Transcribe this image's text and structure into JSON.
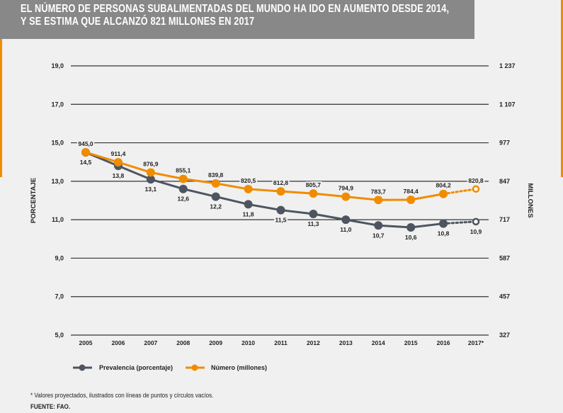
{
  "title_line1": "EL NÚMERO DE PERSONAS SUBALIMENTADAS DEL MUNDO HA IDO EN AUMENTO DESDE 2014,",
  "title_line2": "Y SE ESTIMA QUE ALCANZÓ 821 MILLONES EN 2017",
  "colors": {
    "prevalence": "#4d5560",
    "number": "#f08c00",
    "title_bg": "#888888",
    "accent": "#f08c00"
  },
  "chart_data": {
    "type": "line",
    "categories": [
      "2005",
      "2006",
      "2007",
      "2008",
      "2009",
      "2010",
      "2011",
      "2012",
      "2013",
      "2014",
      "2015",
      "2016",
      "2017*"
    ],
    "ylabel": "PORCENTAJE",
    "y2label": "MILLONES",
    "ylim": [
      5,
      19
    ],
    "y2lim": [
      327,
      1237
    ],
    "yticks": [
      "5,0",
      "7,0",
      "9,0",
      "11,0",
      "13,0",
      "15,0",
      "17,0",
      "19,0"
    ],
    "y2ticks": [
      "327",
      "457",
      "587",
      "717",
      "847",
      "977",
      "1 107",
      "1 237"
    ],
    "grid": true,
    "legend_placement": "bottom-left",
    "projected_from_index": 11,
    "series": [
      {
        "name": "Prevalencia (porcentaje)",
        "axis": "left",
        "values": [
          14.5,
          13.8,
          13.1,
          12.6,
          12.2,
          11.8,
          11.5,
          11.3,
          11.0,
          10.7,
          10.6,
          10.8,
          10.9
        ],
        "labels": [
          "14,5",
          "13,8",
          "13,1",
          "12,6",
          "12,2",
          "11,8",
          "11,5",
          "11,3",
          "11,0",
          "10,7",
          "10,6",
          "10,8",
          "10,9"
        ]
      },
      {
        "name": "Número (millones)",
        "axis": "right",
        "values": [
          945.0,
          911.4,
          876.9,
          855.1,
          839.8,
          820.5,
          812.8,
          805.7,
          794.9,
          783.7,
          784.4,
          804.2,
          820.8
        ],
        "labels": [
          "945,0",
          "911,4",
          "876,9",
          "855,1",
          "839,8",
          "820,5",
          "812,8",
          "805,7",
          "794,9",
          "783,7",
          "784,4",
          "804,2",
          "820,8"
        ]
      }
    ]
  },
  "footnote": "* Valores proyectados, ilustrados con líneas de puntos y círculos vacíos.",
  "source": "FUENTE: FAO."
}
